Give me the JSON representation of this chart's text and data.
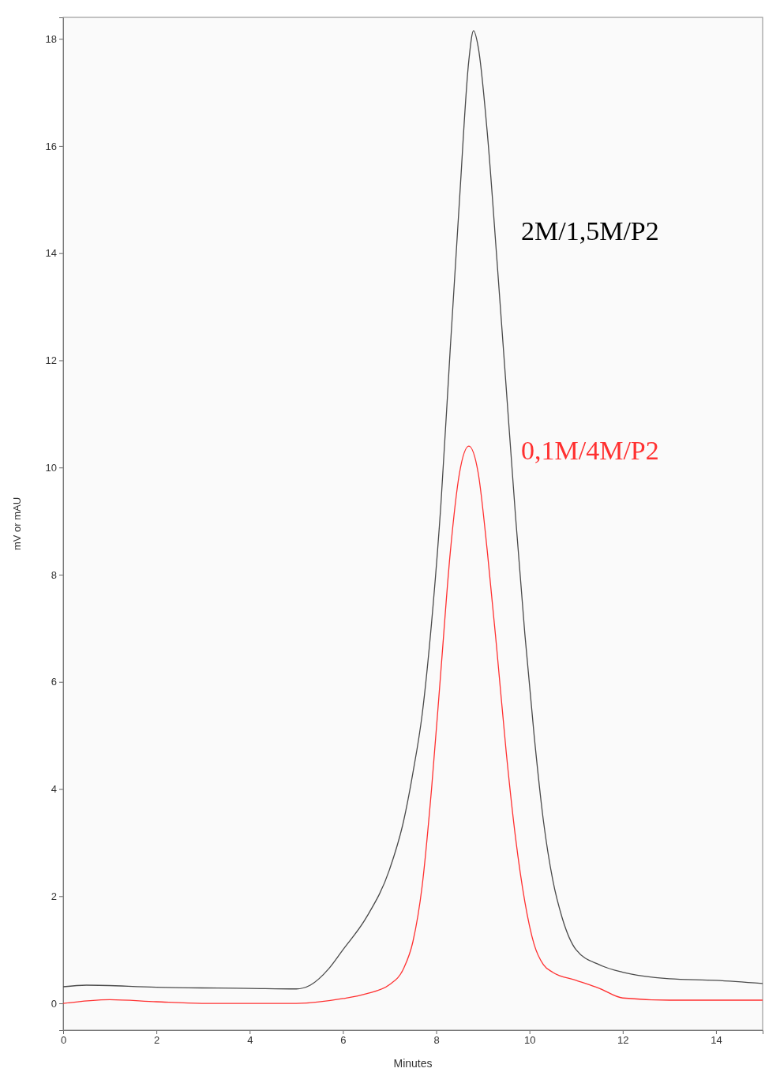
{
  "chart_data": {
    "type": "line",
    "xlabel": "Minutes",
    "ylabel": "mV or mAU",
    "xlim": [
      0,
      15
    ],
    "ylim": [
      -0.5,
      18.4
    ],
    "xticks": [
      0,
      2,
      4,
      6,
      8,
      10,
      12,
      14
    ],
    "yticks": [
      0,
      2,
      4,
      6,
      8,
      10,
      12,
      14,
      16,
      18
    ],
    "grid": false,
    "line_style": "solid",
    "marker": "none",
    "series": [
      {
        "name": "2M/1,5M/P2",
        "color": "#4a4a4a",
        "x": [
          0,
          0.5,
          2,
          4,
          5,
          5.3,
          5.7,
          6,
          6.5,
          7,
          7.3,
          7.5,
          7.7,
          7.9,
          8.1,
          8.3,
          8.5,
          8.7,
          8.8,
          8.9,
          9.1,
          9.3,
          9.5,
          9.7,
          9.9,
          10.1,
          10.3,
          10.5,
          10.7,
          11,
          11.5,
          12,
          13,
          14,
          15
        ],
        "values": [
          0.31,
          0.34,
          0.3,
          0.28,
          0.27,
          0.34,
          0.65,
          1.0,
          1.6,
          2.5,
          3.4,
          4.3,
          5.4,
          7.1,
          9.3,
          12.2,
          15.0,
          17.6,
          18.15,
          17.85,
          16.2,
          13.9,
          11.5,
          9.1,
          6.9,
          5.0,
          3.4,
          2.3,
          1.6,
          1.0,
          0.72,
          0.58,
          0.46,
          0.43,
          0.37
        ]
      },
      {
        "name": "0,1M/4M/P2",
        "color": "#ff3030",
        "x": [
          0,
          1,
          2,
          3,
          5,
          6,
          6.5,
          7,
          7.3,
          7.5,
          7.7,
          7.9,
          8.1,
          8.3,
          8.5,
          8.7,
          8.9,
          9.1,
          9.3,
          9.5,
          9.7,
          9.9,
          10.1,
          10.3,
          10.5,
          11,
          11.5,
          12,
          13,
          14,
          15
        ],
        "values": [
          0,
          0.07,
          0.03,
          0,
          0,
          0.09,
          0.18,
          0.35,
          0.65,
          1.15,
          2.2,
          4.0,
          6.2,
          8.4,
          9.9,
          10.4,
          9.9,
          8.4,
          6.6,
          4.7,
          3.1,
          1.9,
          1.1,
          0.72,
          0.58,
          0.43,
          0.28,
          0.1,
          0.06,
          0.06,
          0.06
        ]
      }
    ]
  }
}
